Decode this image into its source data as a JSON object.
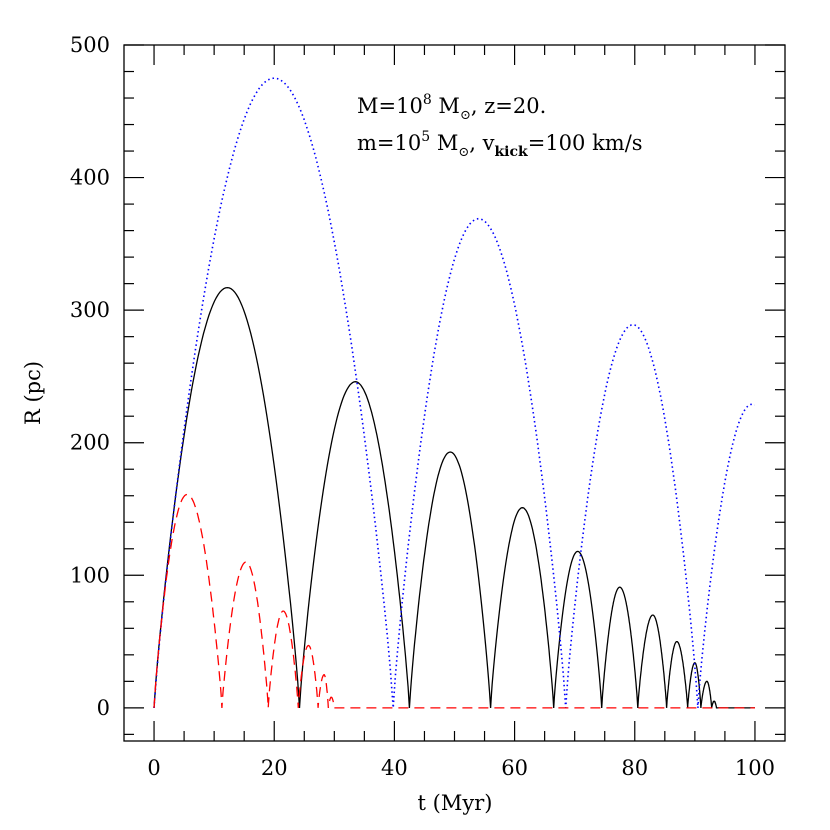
{
  "chart_data": {
    "type": "line",
    "xlabel": "t (Myr)",
    "ylabel": "R (pc)",
    "xlim": [
      -5,
      105
    ],
    "ylim": [
      -25,
      500
    ],
    "xticks": [
      0,
      20,
      40,
      60,
      80,
      100
    ],
    "xtick_labels": [
      "0",
      "20",
      "40",
      "60",
      "80",
      "100"
    ],
    "xminor_step": 5,
    "yticks": [
      0,
      100,
      200,
      300,
      400,
      500
    ],
    "ytick_labels": [
      "0",
      "100",
      "200",
      "300",
      "400",
      "500"
    ],
    "yminor_step": 20,
    "grid": false,
    "annotation": {
      "line1": {
        "a": "M=10",
        "sup": "8",
        "b": " M",
        "sub": "⊙",
        "c": ",  z=20."
      },
      "line2": {
        "a": "m=10",
        "sup": "5",
        "b": " M",
        "sub": "⊙",
        "c": ",  v",
        "sub2": "kick",
        "d": "=100  km/s"
      }
    },
    "series": [
      {
        "color": "#000000",
        "style": "solid",
        "arcs_start_peakt_peakR_end": [
          [
            0,
            12.2,
            317,
            24.2
          ],
          [
            24.2,
            33.5,
            246,
            42.5
          ],
          [
            42.5,
            49.3,
            193,
            56
          ],
          [
            56,
            61.3,
            151,
            66.5
          ],
          [
            66.5,
            70.5,
            118,
            74.5
          ],
          [
            74.5,
            77.5,
            91,
            80.5
          ],
          [
            80.5,
            83,
            70,
            85.3
          ],
          [
            85.3,
            87,
            50,
            88.8
          ],
          [
            88.8,
            90,
            34,
            91
          ],
          [
            91,
            92,
            20,
            92.8
          ],
          [
            92.8,
            93.2,
            5,
            93.6
          ]
        ],
        "flat_until": 100
      },
      {
        "color": "#0000ff",
        "style": "dotted",
        "arcs_start_peakt_peakR_end": [
          [
            0,
            20,
            475,
            39.8
          ],
          [
            39.8,
            54,
            369,
            68.5
          ],
          [
            68.5,
            79.7,
            289,
            90.5
          ],
          [
            90.5,
            99.5,
            229,
            108.5
          ]
        ],
        "end_t": 100
      },
      {
        "color": "#ff0000",
        "style": "dashed",
        "arcs_start_peakt_peakR_end": [
          [
            0,
            5.5,
            161,
            11.3
          ],
          [
            11.3,
            15.3,
            110,
            19
          ],
          [
            19,
            21.5,
            73,
            24
          ],
          [
            24,
            25.7,
            47,
            27.3
          ],
          [
            27.3,
            28.3,
            25,
            29
          ],
          [
            29,
            29.5,
            8,
            30
          ]
        ],
        "flat_until": 100
      }
    ]
  }
}
